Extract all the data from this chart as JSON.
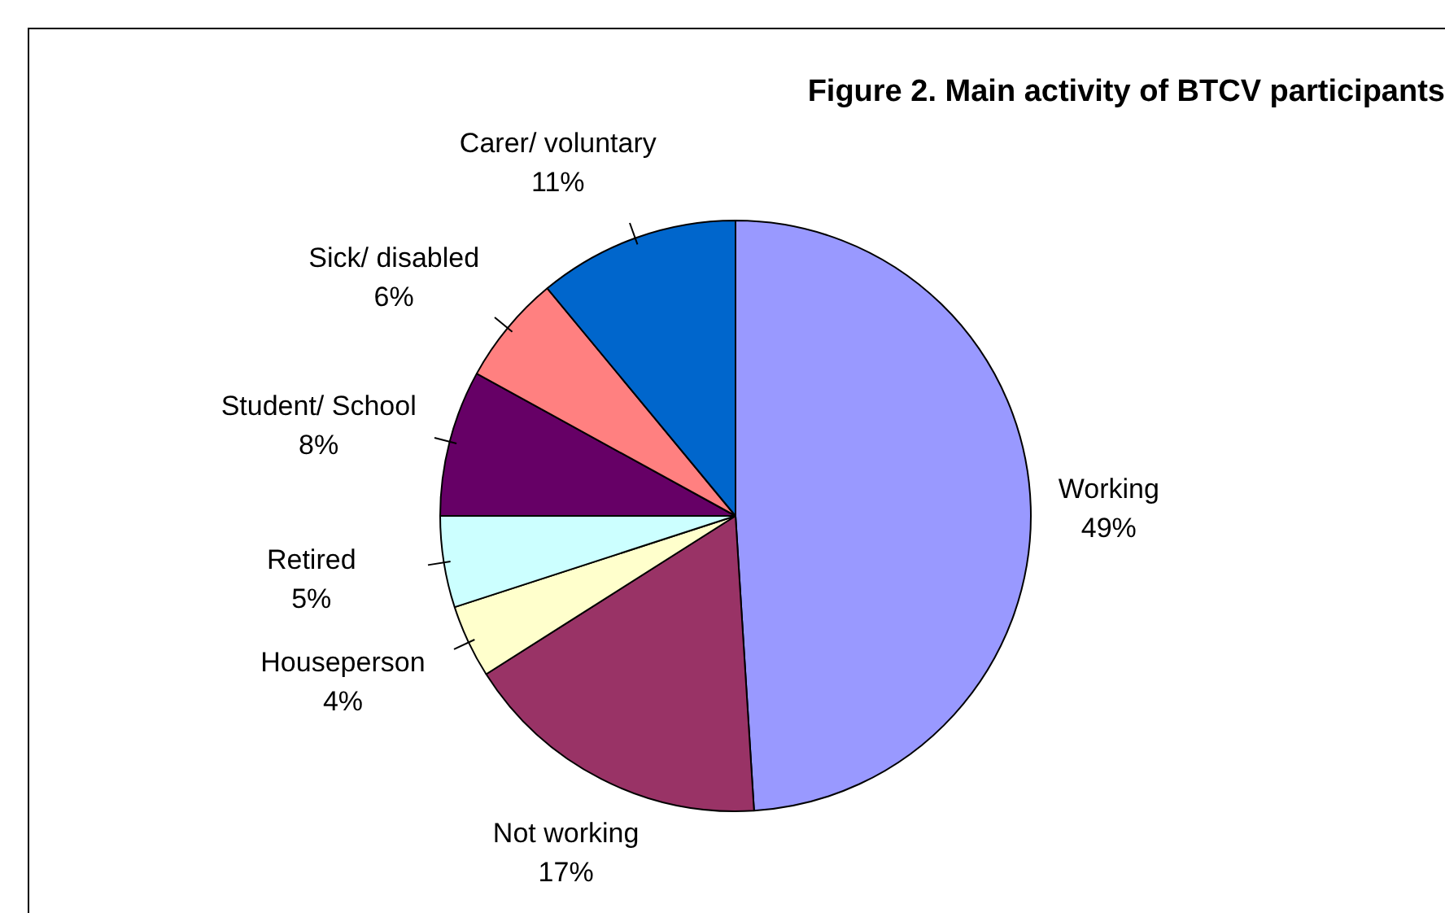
{
  "chart_data": {
    "type": "pie",
    "title": "Figure 2. Main activity of BTCV participants",
    "categories": [
      "Working",
      "Not working",
      "Houseperson",
      "Retired",
      "Student/ School",
      "Sick/ disabled",
      "Carer/ voluntary"
    ],
    "values": [
      49,
      17,
      4,
      5,
      8,
      6,
      11
    ],
    "colors": [
      "#9999ff",
      "#993366",
      "#ffffcc",
      "#ccffff",
      "#660066",
      "#ff8080",
      "#0066cc"
    ],
    "value_labels": [
      "49%",
      "17%",
      "4%",
      "5%",
      "8%",
      "6%",
      "11%"
    ],
    "legend": false
  }
}
